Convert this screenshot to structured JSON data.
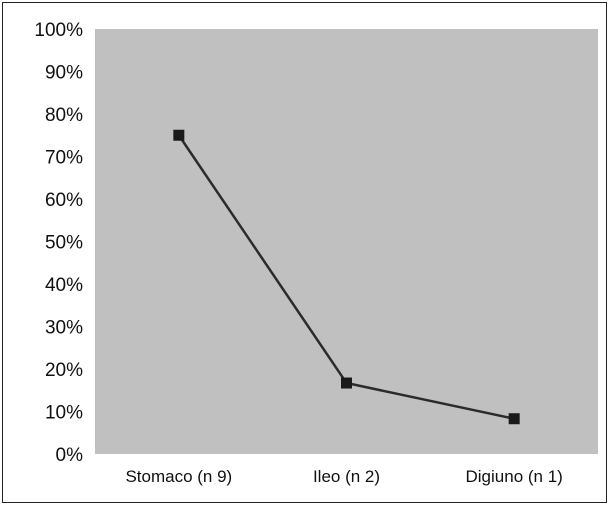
{
  "chart_data": {
    "type": "line",
    "categories": [
      "Stomaco (n 9)",
      "Ileo (n 2)",
      "Digiuno (n 1)"
    ],
    "series": [
      {
        "values": [
          75,
          16.7,
          8.3
        ]
      }
    ],
    "y_ticks": [
      "0%",
      "10%",
      "20%",
      "30%",
      "40%",
      "50%",
      "60%",
      "70%",
      "80%",
      "90%",
      "100%"
    ],
    "ylim": [
      0,
      100
    ],
    "grid": false,
    "legend": "none",
    "colors": {
      "plot_background": "#c0c0c0",
      "line": "#2b2b2b",
      "marker": "#1a1a1a"
    }
  }
}
